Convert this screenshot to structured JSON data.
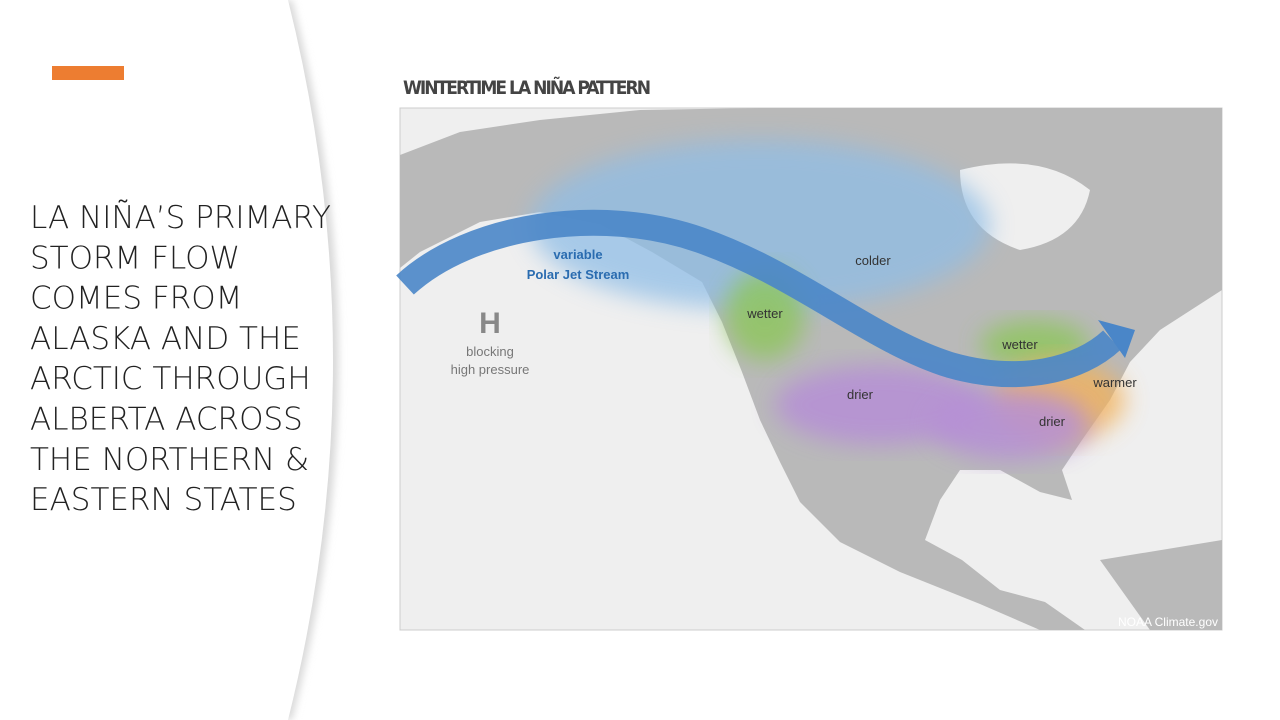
{
  "slide": {
    "title_lines": [
      "LA NIÑA’S PRIMARY",
      "STORM FLOW",
      "COMES FROM",
      "ALASKA AND THE",
      "ARCTIC THROUGH",
      "ALBERTA ACROSS",
      "THE NORTHERN &",
      "EASTERN STATES"
    ]
  },
  "map": {
    "title": "WINTERTIME LA NIÑA PATTERN",
    "labels": {
      "jet_1": "variable",
      "jet_2": "Polar Jet Stream",
      "colder": "colder",
      "wetter_west": "wetter",
      "wetter_east": "wetter",
      "drier_west": "drier",
      "drier_east": "drier",
      "warmer": "warmer",
      "high": "H",
      "high_1": "blocking",
      "high_2": "high pressure"
    },
    "credit": "NOAA Climate.gov"
  }
}
